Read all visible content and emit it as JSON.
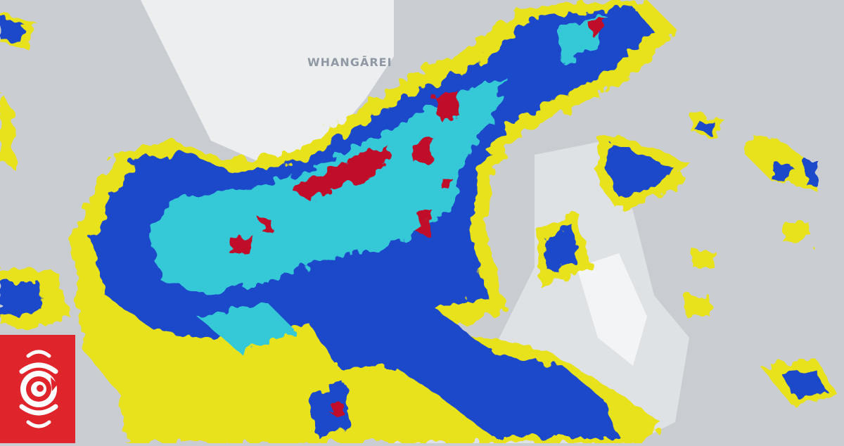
{
  "map": {
    "type": "weather-radar",
    "place_labels": [
      {
        "name": "WHANGĀREI"
      }
    ],
    "colors": {
      "sea": "#c9cdd2",
      "land": "#eceef0",
      "rain_light": "#e8e21a",
      "rain_moderate": "#1f49c9",
      "rain_heavy": "#36c9d8",
      "rain_intense": "#c0102a"
    }
  },
  "logo": {
    "name": "RNZ",
    "icon": "rnz-swirl-logo",
    "color": "#e0242b"
  }
}
